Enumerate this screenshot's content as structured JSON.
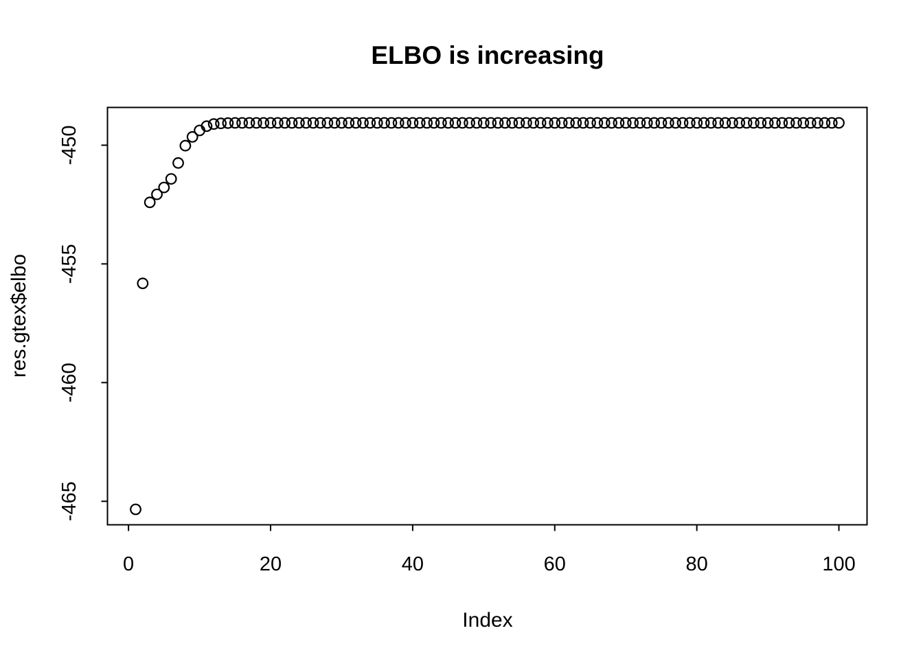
{
  "chart_data": {
    "type": "scatter",
    "title": "ELBO is increasing",
    "xlabel": "Index",
    "ylabel": "res.gtex$elbo",
    "marker": "open-circle",
    "marker_color": "#000000",
    "background_color": "#ffffff",
    "grid": false,
    "legend_position": "none",
    "xlim": [
      -2.96,
      103.96
    ],
    "ylim": [
      -465.99,
      -448.41
    ],
    "x_ticks": [
      0,
      20,
      40,
      60,
      80,
      100
    ],
    "y_ticks": [
      -465,
      -460,
      -455,
      -450
    ],
    "x": [
      1,
      2,
      3,
      4,
      5,
      6,
      7,
      8,
      9,
      10,
      11,
      12,
      13,
      14,
      15,
      16,
      17,
      18,
      19,
      20,
      21,
      22,
      23,
      24,
      25,
      26,
      27,
      28,
      29,
      30,
      31,
      32,
      33,
      34,
      35,
      36,
      37,
      38,
      39,
      40,
      41,
      42,
      43,
      44,
      45,
      46,
      47,
      48,
      49,
      50,
      51,
      52,
      53,
      54,
      55,
      56,
      57,
      58,
      59,
      60,
      61,
      62,
      63,
      64,
      65,
      66,
      67,
      68,
      69,
      70,
      71,
      72,
      73,
      74,
      75,
      76,
      77,
      78,
      79,
      80,
      81,
      82,
      83,
      84,
      85,
      86,
      87,
      88,
      89,
      90,
      91,
      92,
      93,
      94,
      95,
      96,
      97,
      98,
      99,
      100
    ],
    "values": [
      -465.34,
      -455.82,
      -452.41,
      -452.07,
      -451.78,
      -451.42,
      -450.75,
      -450.02,
      -449.65,
      -449.38,
      -449.2,
      -449.11,
      -449.08,
      -449.07,
      -449.06,
      -449.06,
      -449.06,
      -449.06,
      -449.06,
      -449.06,
      -449.06,
      -449.06,
      -449.06,
      -449.06,
      -449.06,
      -449.06,
      -449.06,
      -449.06,
      -449.06,
      -449.06,
      -449.06,
      -449.06,
      -449.06,
      -449.06,
      -449.06,
      -449.06,
      -449.06,
      -449.06,
      -449.06,
      -449.06,
      -449.06,
      -449.06,
      -449.06,
      -449.06,
      -449.06,
      -449.06,
      -449.06,
      -449.06,
      -449.06,
      -449.06,
      -449.06,
      -449.06,
      -449.06,
      -449.06,
      -449.06,
      -449.06,
      -449.06,
      -449.06,
      -449.06,
      -449.06,
      -449.06,
      -449.06,
      -449.06,
      -449.06,
      -449.06,
      -449.06,
      -449.06,
      -449.06,
      -449.06,
      -449.06,
      -449.06,
      -449.06,
      -449.06,
      -449.06,
      -449.06,
      -449.06,
      -449.06,
      -449.06,
      -449.06,
      -449.06,
      -449.06,
      -449.06,
      -449.06,
      -449.06,
      -449.06,
      -449.06,
      -449.06,
      -449.06,
      -449.06,
      -449.06,
      -449.06,
      -449.06,
      -449.06,
      -449.06,
      -449.06,
      -449.06,
      -449.06,
      -449.06,
      -449.06,
      -449.06
    ]
  }
}
